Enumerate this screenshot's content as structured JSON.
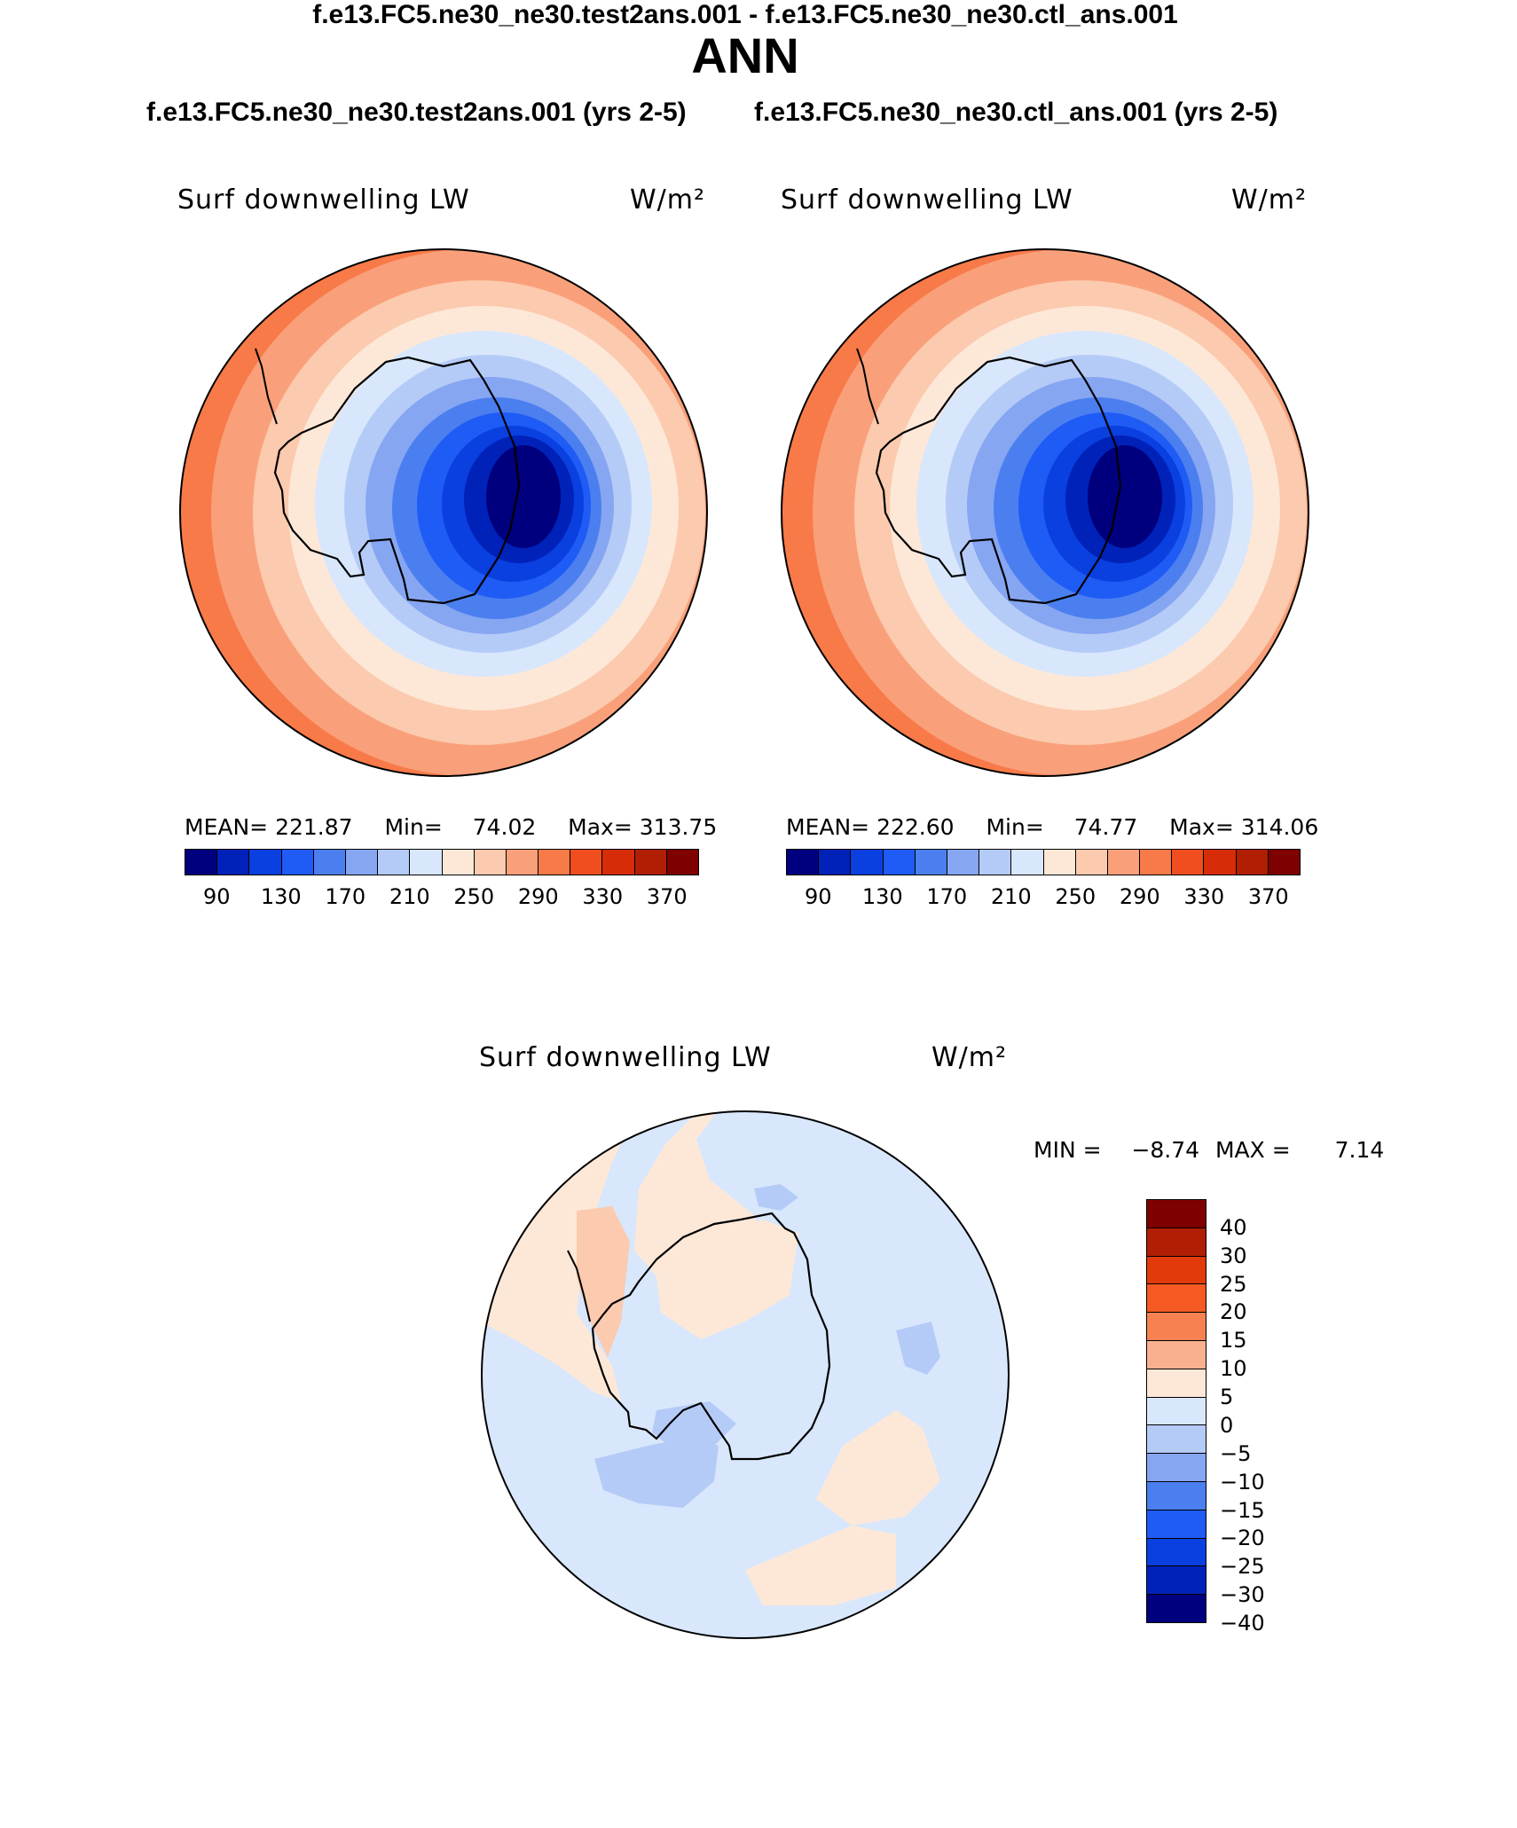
{
  "title": "ANN",
  "panels": {
    "test": {
      "case_title": "f.e13.FC5.ne30_ne30.test2ans.001 (yrs 2-5)",
      "variable_label": "Surf downwelling LW",
      "units": "W/m²",
      "mean_label": "MEAN=",
      "mean_value": "221.87",
      "min_label": "Min=",
      "min_value": "74.02",
      "max_label": "Max=",
      "max_value": "313.75"
    },
    "control": {
      "case_title": "f.e13.FC5.ne30_ne30.ctl_ans.001 (yrs 2-5)",
      "variable_label": "Surf downwelling LW",
      "units": "W/m²",
      "mean_label": "MEAN=",
      "mean_value": "222.60",
      "min_label": "Min=",
      "min_value": "74.77",
      "max_label": "Max=",
      "max_value": "314.06"
    },
    "difference": {
      "case_title": "f.e13.FC5.ne30_ne30.test2ans.001 - f.e13.FC5.ne30_ne30.ctl_ans.001",
      "variable_label": "Surf downwelling LW",
      "units": "W/m²",
      "min_label": "MIN =",
      "min_value": "−8.74",
      "max_label": "MAX =",
      "max_value": "7.14"
    }
  },
  "colorbar_main": {
    "colors": [
      "#00007f",
      "#0022b8",
      "#0a3fe0",
      "#1f5bf5",
      "#4b7ff0",
      "#86a6f2",
      "#b5cbf7",
      "#d8e7fb",
      "#fde8d8",
      "#fccaae",
      "#f9a07a",
      "#f87a48",
      "#f04e1e",
      "#d62d08",
      "#b01e04",
      "#7f0000"
    ],
    "tick_labels": [
      "90",
      "130",
      "170",
      "210",
      "250",
      "290",
      "330",
      "370"
    ]
  },
  "colorbar_diff": {
    "colors": [
      "#7f0000",
      "#b01e04",
      "#e33a0c",
      "#f45a22",
      "#f88152",
      "#f9b08e",
      "#fde8d8",
      "#d8e7fb",
      "#b5cbf7",
      "#86a6f2",
      "#4b7ff0",
      "#1f5bf5",
      "#0a3fe0",
      "#0022b8",
      "#00007f"
    ],
    "tick_labels": [
      "40",
      "30",
      "25",
      "20",
      "15",
      "10",
      "5",
      "0",
      "−5",
      "−10",
      "−15",
      "−20",
      "−25",
      "−30",
      "−40"
    ]
  },
  "colors": {
    "diff_background": "#d8e7fb",
    "diff_positive": "#fde8d8"
  }
}
